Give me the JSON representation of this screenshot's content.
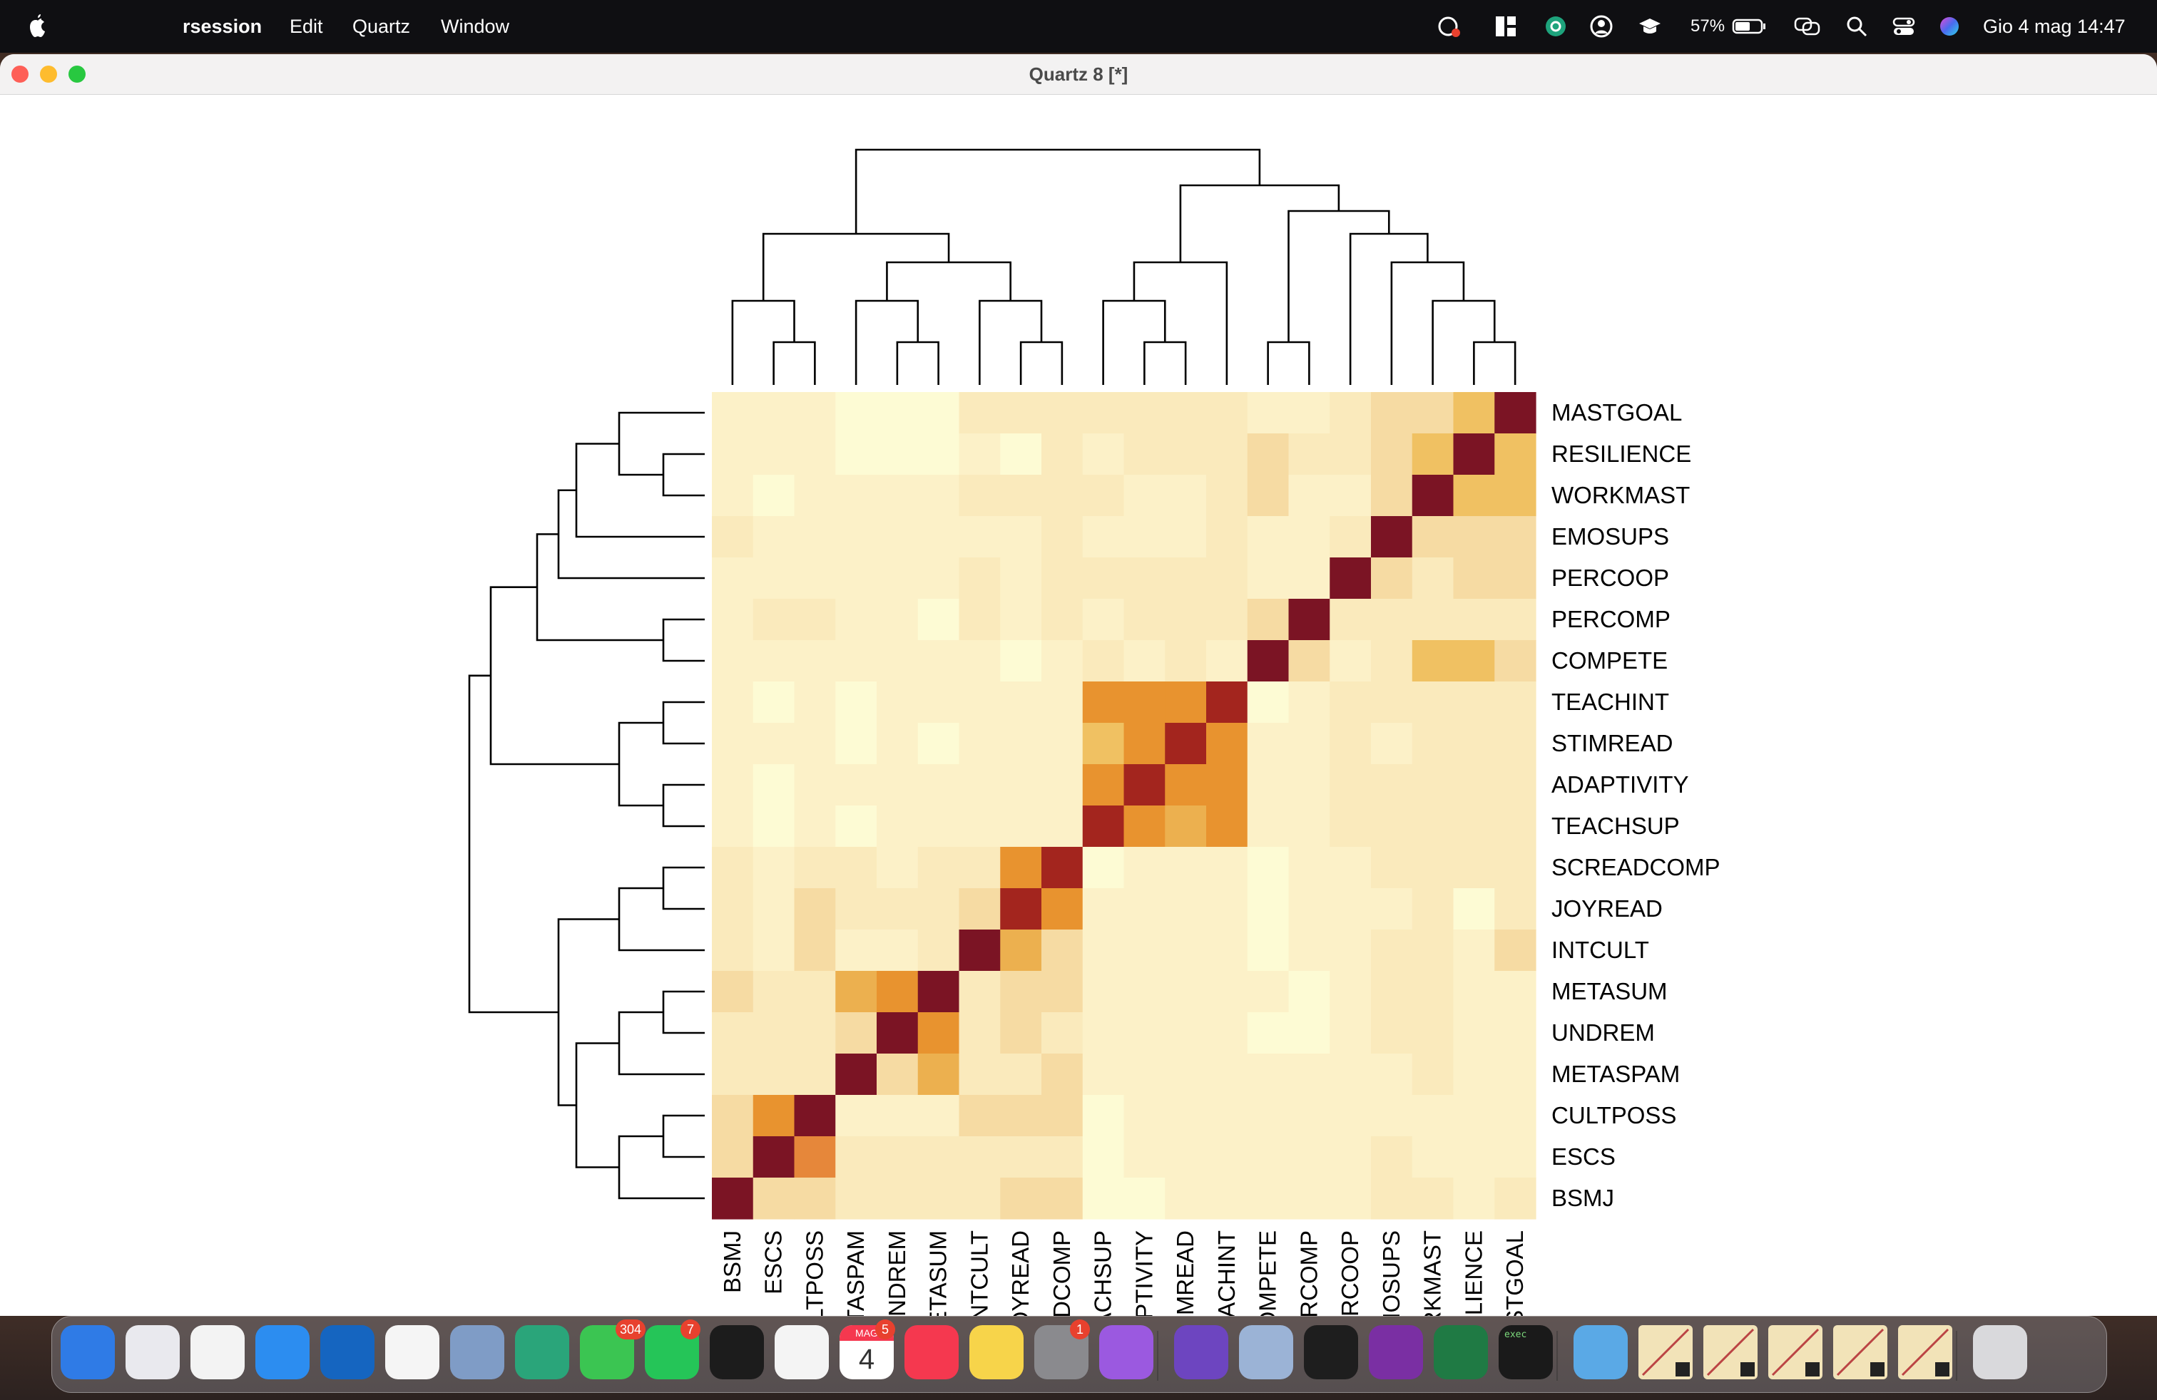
{
  "menubar": {
    "app_name": "rsession",
    "menus": [
      "Edit",
      "Quartz",
      "Window"
    ],
    "battery": "57%",
    "clock": "Gio 4 mag  14:47"
  },
  "window": {
    "title": "Quartz 8 [*]"
  },
  "chart_data": {
    "type": "heatmap",
    "row_labels": [
      "MASTGOAL",
      "RESILIENCE",
      "WORKMAST",
      "EMOSUPS",
      "PERCOOP",
      "PERCOMP",
      "COMPETE",
      "TEACHINT",
      "STIMREAD",
      "ADAPTIVITY",
      "TEACHSUP",
      "SCREADCOMP",
      "JOYREAD",
      "INTCULT",
      "METASUM",
      "UNDREM",
      "METASPAM",
      "CULTPOSS",
      "ESCS",
      "BSMJ"
    ],
    "col_labels": [
      "BSMJ",
      "ESCS",
      "CULTPOSS",
      "METASPAM",
      "UNDREM",
      "METASUM",
      "INTCULT",
      "JOYREAD",
      "READCOMP",
      "TEACHSUP",
      "ADAPTIVITY",
      "STIMREAD",
      "TEACHINT",
      "COMPETE",
      "PERCOMP",
      "PERCOOP",
      "EMOSUPS",
      "WORKMAST",
      "RESILIENCE",
      "MASTGOAL"
    ],
    "values": [
      [
        1,
        1,
        1,
        0,
        0,
        0,
        2,
        2,
        2,
        2,
        2,
        2,
        2,
        1,
        1,
        2,
        3,
        3,
        4,
        9
      ],
      [
        1,
        1,
        1,
        0,
        0,
        0,
        1,
        0,
        2,
        1,
        2,
        2,
        2,
        3,
        2,
        2,
        3,
        4,
        9,
        4
      ],
      [
        1,
        0,
        1,
        1,
        1,
        1,
        2,
        2,
        2,
        2,
        1,
        1,
        2,
        3,
        1,
        1,
        3,
        9,
        4,
        4
      ],
      [
        2,
        1,
        1,
        1,
        1,
        1,
        1,
        1,
        2,
        1,
        1,
        1,
        2,
        1,
        1,
        2,
        9,
        3,
        3,
        3
      ],
      [
        1,
        1,
        1,
        1,
        1,
        1,
        2,
        1,
        2,
        2,
        2,
        2,
        2,
        1,
        1,
        9,
        3,
        2,
        3,
        3
      ],
      [
        1,
        2,
        2,
        1,
        1,
        0,
        2,
        1,
        2,
        1,
        2,
        2,
        2,
        3,
        9,
        2,
        2,
        2,
        2,
        2
      ],
      [
        1,
        1,
        1,
        1,
        1,
        1,
        1,
        0,
        1,
        2,
        1,
        2,
        1,
        9,
        3,
        1,
        2,
        4,
        4,
        3
      ],
      [
        1,
        0,
        1,
        0,
        1,
        1,
        1,
        1,
        1,
        6,
        6,
        6,
        8,
        0,
        1,
        2,
        2,
        2,
        2,
        2
      ],
      [
        1,
        1,
        1,
        0,
        1,
        0,
        1,
        1,
        1,
        4,
        6,
        8,
        6,
        1,
        1,
        2,
        1,
        2,
        2,
        2
      ],
      [
        1,
        0,
        1,
        1,
        1,
        1,
        1,
        1,
        1,
        6,
        8,
        6,
        6,
        1,
        1,
        2,
        2,
        2,
        2,
        2
      ],
      [
        1,
        0,
        1,
        0,
        1,
        1,
        1,
        1,
        1,
        8,
        6,
        5,
        6,
        1,
        1,
        2,
        2,
        2,
        2,
        2
      ],
      [
        2,
        1,
        2,
        2,
        1,
        2,
        2,
        6,
        8,
        0,
        1,
        1,
        1,
        0,
        1,
        1,
        2,
        2,
        2,
        2
      ],
      [
        2,
        1,
        3,
        2,
        2,
        2,
        3,
        8,
        6,
        1,
        1,
        1,
        1,
        0,
        1,
        1,
        1,
        2,
        0,
        2
      ],
      [
        2,
        1,
        3,
        1,
        1,
        2,
        9,
        5,
        3,
        1,
        1,
        1,
        1,
        0,
        1,
        1,
        2,
        2,
        1,
        3
      ],
      [
        3,
        2,
        2,
        5,
        6,
        9,
        2,
        3,
        3,
        1,
        1,
        1,
        1,
        1,
        0,
        1,
        2,
        2,
        1,
        1
      ],
      [
        2,
        2,
        2,
        3,
        9,
        6,
        2,
        3,
        2,
        1,
        1,
        1,
        1,
        0,
        0,
        1,
        2,
        2,
        1,
        1
      ],
      [
        2,
        2,
        2,
        9,
        3,
        5,
        2,
        2,
        3,
        1,
        1,
        1,
        1,
        1,
        1,
        1,
        1,
        2,
        1,
        1
      ],
      [
        3,
        6,
        9,
        1,
        1,
        1,
        3,
        3,
        3,
        0,
        1,
        1,
        1,
        1,
        1,
        1,
        1,
        1,
        1,
        1
      ],
      [
        3,
        9,
        7,
        2,
        2,
        2,
        2,
        2,
        2,
        0,
        1,
        1,
        1,
        1,
        1,
        1,
        2,
        1,
        1,
        1
      ],
      [
        9,
        3,
        3,
        2,
        2,
        2,
        2,
        3,
        3,
        0,
        0,
        1,
        1,
        1,
        1,
        1,
        2,
        2,
        1,
        2
      ]
    ],
    "col_label_display": [
      "BSMJ",
      "ESCS",
      "CULTPOSS",
      "METASPAM",
      "UNDREM",
      "METASUM",
      "INTCULT",
      "JOYREAD",
      "READCOMP",
      "TEACHSUP",
      "ADAPTIVITY",
      "STIMREAD",
      "TEACHINT",
      "COMPETE",
      "PERCOMP",
      "PERCOOP",
      "EMOSUPS",
      "WORKMAST",
      "RESILIENCE",
      "MASTGOAL"
    ],
    "palette": [
      "#fdfbd4",
      "#fcf1c8",
      "#faeabc",
      "#f6dba3",
      "#f0c162",
      "#ecb04f",
      "#e8932f",
      "#e6873a",
      "#a3251e",
      "#7b1424"
    ],
    "dendrogram": "both"
  },
  "dock": {
    "apps": [
      {
        "name": "finder-icon",
        "bg": "#2f7be6"
      },
      {
        "name": "launchpad-icon",
        "bg": "#e9e9ee"
      },
      {
        "name": "textedit-icon",
        "bg": "#f3f3f3"
      },
      {
        "name": "safari-icon",
        "bg": "#2c8df0"
      },
      {
        "name": "outlook-icon",
        "bg": "#1565c0"
      },
      {
        "name": "vscode-icon",
        "bg": "#f5f5f5"
      },
      {
        "name": "r-icon",
        "bg": "#7f9cc6"
      },
      {
        "name": "sync-icon",
        "bg": "#2aa57a"
      },
      {
        "name": "messages-icon",
        "bg": "#3bc552",
        "badge": "304"
      },
      {
        "name": "whatsapp-icon",
        "bg": "#25c558",
        "badge": "7"
      },
      {
        "name": "spotify-icon",
        "bg": "#1c1c1c"
      },
      {
        "name": "photos-icon",
        "bg": "#f4f4f4"
      },
      {
        "name": "calendar-icon",
        "bg": "#ffffff",
        "badge": "5",
        "text": "4",
        "month": "MAG"
      },
      {
        "name": "music-icon",
        "bg": "#f5384f"
      },
      {
        "name": "notes-icon",
        "bg": "#f7d44a"
      },
      {
        "name": "system-settings-icon",
        "bg": "#8a8a8e",
        "badge": "1"
      },
      {
        "name": "feedback-icon",
        "bg": "#9b59e0"
      },
      {
        "name": "github-icon",
        "bg": "#6d45c0"
      },
      {
        "name": "preview-icon",
        "bg": "#9bb3d6"
      },
      {
        "name": "terminal-icon",
        "bg": "#1e1e1e"
      },
      {
        "name": "onenote-icon",
        "bg": "#7a2fa3"
      },
      {
        "name": "excel-icon",
        "bg": "#1f7a44"
      },
      {
        "name": "exec-icon",
        "bg": "#1a1a1a",
        "text": "exec"
      },
      {
        "name": "downloads-folder-icon",
        "bg": "#5aa9e6"
      },
      {
        "name": "plot-thumbnail-icon",
        "bg": "#f2e3b8"
      },
      {
        "name": "plot-thumbnail-icon",
        "bg": "#f2e3b8"
      },
      {
        "name": "plot-thumbnail-icon",
        "bg": "#f2e3b8"
      },
      {
        "name": "plot-thumbnail-icon",
        "bg": "#f2e3b8"
      },
      {
        "name": "plot-thumbnail-icon",
        "bg": "#f2e3b8"
      },
      {
        "name": "trash-icon",
        "bg": "#d9d9dc"
      }
    ]
  }
}
